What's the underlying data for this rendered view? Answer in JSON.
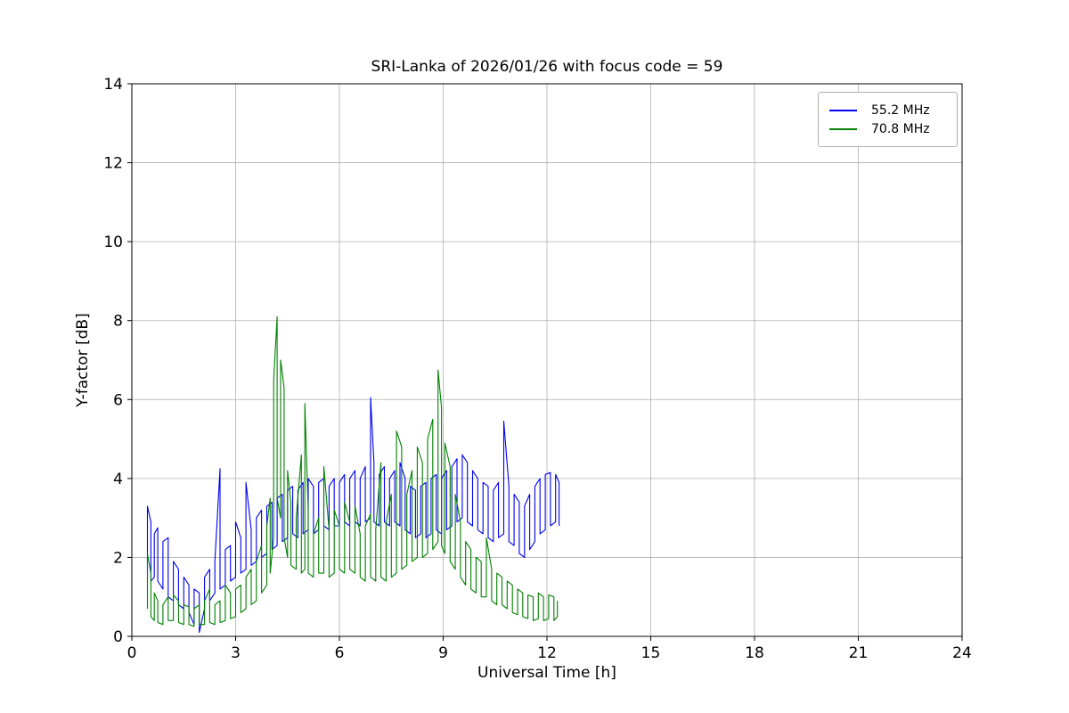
{
  "title": "SRI-Lanka of 2026/01/26 with focus code = 59",
  "chart_data": {
    "type": "line",
    "title": "SRI-Lanka of 2026/01/26 with focus code = 59",
    "xlabel": "Universal Time [h]",
    "ylabel": "Y-factor [dB]",
    "xlim": [
      0,
      24
    ],
    "ylim": [
      0,
      14
    ],
    "x_ticks": [
      0,
      3,
      6,
      9,
      12,
      15,
      18,
      21,
      24
    ],
    "y_ticks": [
      0,
      2,
      4,
      6,
      8,
      10,
      12,
      14
    ],
    "grid": true,
    "grid_color": "#b0b0b0",
    "legend_position": "upper right",
    "series": [
      {
        "name": "55.2 MHz",
        "color": "#0000ee",
        "points_format": "[x_hours, min_dB, max_dB]",
        "points": [
          [
            0.45,
            1.5,
            3.3
          ],
          [
            0.55,
            1.4,
            2.9
          ],
          [
            0.65,
            1.5,
            2.6
          ],
          [
            0.75,
            1.4,
            2.75
          ],
          [
            0.9,
            1.2,
            2.4
          ],
          [
            1.05,
            1.0,
            2.5
          ],
          [
            1.2,
            0.9,
            1.9
          ],
          [
            1.35,
            0.8,
            1.7
          ],
          [
            1.5,
            0.7,
            1.5
          ],
          [
            1.65,
            0.6,
            1.3
          ],
          [
            1.8,
            0.3,
            1.2
          ],
          [
            1.95,
            0.1,
            1.1
          ],
          [
            2.1,
            0.7,
            1.5
          ],
          [
            2.25,
            0.9,
            1.7
          ],
          [
            2.4,
            1.1,
            1.9
          ],
          [
            2.55,
            1.2,
            4.25
          ],
          [
            2.7,
            1.3,
            2.2
          ],
          [
            2.85,
            1.4,
            2.3
          ],
          [
            3.0,
            1.5,
            2.9
          ],
          [
            3.15,
            1.6,
            2.5
          ],
          [
            3.3,
            1.7,
            3.9
          ],
          [
            3.45,
            1.8,
            2.7
          ],
          [
            3.6,
            1.9,
            3.0
          ],
          [
            3.75,
            2.0,
            3.2
          ],
          [
            3.9,
            2.1,
            3.3
          ],
          [
            4.05,
            2.2,
            3.4
          ],
          [
            4.2,
            2.3,
            3.5
          ],
          [
            4.35,
            2.4,
            3.6
          ],
          [
            4.5,
            2.5,
            3.7
          ],
          [
            4.65,
            2.6,
            3.8
          ],
          [
            4.8,
            2.5,
            3.7
          ],
          [
            4.95,
            2.6,
            3.9
          ],
          [
            5.1,
            2.7,
            4.0
          ],
          [
            5.25,
            2.6,
            3.8
          ],
          [
            5.4,
            2.7,
            3.9
          ],
          [
            5.55,
            2.8,
            4.0
          ],
          [
            5.7,
            2.7,
            3.8
          ],
          [
            5.85,
            2.8,
            4.0
          ],
          [
            6.0,
            2.8,
            3.9
          ],
          [
            6.15,
            2.9,
            4.1
          ],
          [
            6.3,
            2.8,
            4.0
          ],
          [
            6.45,
            2.9,
            4.2
          ],
          [
            6.6,
            2.8,
            4.0
          ],
          [
            6.75,
            2.9,
            4.3
          ],
          [
            6.9,
            3.0,
            6.05
          ],
          [
            7.0,
            2.9,
            4.4
          ],
          [
            7.15,
            2.8,
            4.1
          ],
          [
            7.3,
            2.9,
            4.3
          ],
          [
            7.45,
            2.8,
            4.0
          ],
          [
            7.6,
            2.9,
            4.2
          ],
          [
            7.75,
            2.8,
            4.4
          ],
          [
            7.9,
            2.7,
            4.0
          ],
          [
            8.05,
            2.6,
            3.8
          ],
          [
            8.2,
            2.5,
            3.7
          ],
          [
            8.35,
            2.6,
            3.8
          ],
          [
            8.5,
            2.5,
            3.9
          ],
          [
            8.65,
            2.6,
            4.0
          ],
          [
            8.8,
            2.7,
            4.1
          ],
          [
            8.95,
            2.6,
            4.0
          ],
          [
            9.1,
            2.7,
            4.2
          ],
          [
            9.25,
            2.8,
            4.3
          ],
          [
            9.4,
            2.9,
            4.5
          ],
          [
            9.55,
            3.0,
            4.6
          ],
          [
            9.7,
            2.9,
            4.4
          ],
          [
            9.85,
            2.8,
            4.2
          ],
          [
            10.0,
            2.7,
            4.0
          ],
          [
            10.15,
            2.6,
            3.9
          ],
          [
            10.3,
            2.5,
            3.8
          ],
          [
            10.45,
            2.4,
            3.7
          ],
          [
            10.6,
            2.5,
            3.9
          ],
          [
            10.75,
            2.6,
            5.45
          ],
          [
            10.9,
            2.4,
            3.8
          ],
          [
            11.05,
            2.3,
            3.6
          ],
          [
            11.2,
            2.1,
            3.4
          ],
          [
            11.35,
            2.0,
            3.3
          ],
          [
            11.5,
            2.2,
            3.6
          ],
          [
            11.65,
            2.4,
            3.8
          ],
          [
            11.8,
            2.6,
            4.0
          ],
          [
            11.95,
            2.7,
            4.1
          ],
          [
            12.1,
            2.8,
            4.15
          ],
          [
            12.25,
            2.9,
            4.1
          ],
          [
            12.35,
            2.8,
            3.9
          ]
        ]
      },
      {
        "name": "70.8 MHz",
        "color": "#008000",
        "points_format": "[x_hours, min_dB, max_dB]",
        "points": [
          [
            0.45,
            0.7,
            2.1
          ],
          [
            0.55,
            0.5,
            1.6
          ],
          [
            0.65,
            0.4,
            1.1
          ],
          [
            0.75,
            0.35,
            0.9
          ],
          [
            0.9,
            0.3,
            0.8
          ],
          [
            1.05,
            0.4,
            1.0
          ],
          [
            1.2,
            0.4,
            1.05
          ],
          [
            1.35,
            0.35,
            0.9
          ],
          [
            1.5,
            0.3,
            0.8
          ],
          [
            1.65,
            0.3,
            0.75
          ],
          [
            1.8,
            0.25,
            0.7
          ],
          [
            1.95,
            0.3,
            0.8
          ],
          [
            2.1,
            0.3,
            0.9
          ],
          [
            2.25,
            0.35,
            1.2
          ],
          [
            2.4,
            0.3,
            0.8
          ],
          [
            2.55,
            0.35,
            0.9
          ],
          [
            2.7,
            0.4,
            1.3
          ],
          [
            2.85,
            0.45,
            1.1
          ],
          [
            3.0,
            0.5,
            1.2
          ],
          [
            3.15,
            0.6,
            1.3
          ],
          [
            3.3,
            0.7,
            1.5
          ],
          [
            3.45,
            0.8,
            1.7
          ],
          [
            3.6,
            0.9,
            1.9
          ],
          [
            3.75,
            1.1,
            2.3
          ],
          [
            3.9,
            1.3,
            2.8
          ],
          [
            4.0,
            1.6,
            3.5
          ],
          [
            4.1,
            2.5,
            6.5
          ],
          [
            4.2,
            3.5,
            8.1
          ],
          [
            4.3,
            3.0,
            7.0
          ],
          [
            4.4,
            2.5,
            6.3
          ],
          [
            4.5,
            2.0,
            4.2
          ],
          [
            4.6,
            1.8,
            3.4
          ],
          [
            4.75,
            1.7,
            3.0
          ],
          [
            4.9,
            1.6,
            4.6
          ],
          [
            5.0,
            1.7,
            5.9
          ],
          [
            5.1,
            1.6,
            3.2
          ],
          [
            5.25,
            1.5,
            2.6
          ],
          [
            5.4,
            1.6,
            3.0
          ],
          [
            5.55,
            1.6,
            4.3
          ],
          [
            5.7,
            1.5,
            2.7
          ],
          [
            5.85,
            1.6,
            3.2
          ],
          [
            6.0,
            1.7,
            2.8
          ],
          [
            6.15,
            1.6,
            3.4
          ],
          [
            6.3,
            1.7,
            2.9
          ],
          [
            6.45,
            1.6,
            3.3
          ],
          [
            6.6,
            1.5,
            2.6
          ],
          [
            6.75,
            1.4,
            2.8
          ],
          [
            6.9,
            1.5,
            3.1
          ],
          [
            7.05,
            1.4,
            2.7
          ],
          [
            7.2,
            1.5,
            4.4
          ],
          [
            7.35,
            1.4,
            2.9
          ],
          [
            7.5,
            1.5,
            3.6
          ],
          [
            7.65,
            1.6,
            5.2
          ],
          [
            7.8,
            1.7,
            4.8
          ],
          [
            7.95,
            1.8,
            3.6
          ],
          [
            8.1,
            1.9,
            4.2
          ],
          [
            8.25,
            2.0,
            4.8
          ],
          [
            8.4,
            2.0,
            4.4
          ],
          [
            8.55,
            2.1,
            5.0
          ],
          [
            8.7,
            2.2,
            5.5
          ],
          [
            8.85,
            2.4,
            6.75
          ],
          [
            8.95,
            2.3,
            5.8
          ],
          [
            9.05,
            2.1,
            4.9
          ],
          [
            9.2,
            1.9,
            4.3
          ],
          [
            9.35,
            1.7,
            3.6
          ],
          [
            9.5,
            1.5,
            2.9
          ],
          [
            9.65,
            1.3,
            2.4
          ],
          [
            9.8,
            1.2,
            2.2
          ],
          [
            9.95,
            1.1,
            2.0
          ],
          [
            10.1,
            1.0,
            1.9
          ],
          [
            10.25,
            1.0,
            2.5
          ],
          [
            10.4,
            0.9,
            1.7
          ],
          [
            10.55,
            0.8,
            1.6
          ],
          [
            10.7,
            0.8,
            1.5
          ],
          [
            10.85,
            0.7,
            1.4
          ],
          [
            11.0,
            0.6,
            1.3
          ],
          [
            11.15,
            0.55,
            1.2
          ],
          [
            11.3,
            0.5,
            1.1
          ],
          [
            11.45,
            0.45,
            1.05
          ],
          [
            11.6,
            0.4,
            1.0
          ],
          [
            11.75,
            0.45,
            1.1
          ],
          [
            11.9,
            0.4,
            1.0
          ],
          [
            12.05,
            0.45,
            1.05
          ],
          [
            12.2,
            0.4,
            1.0
          ],
          [
            12.3,
            0.5,
            0.9
          ]
        ]
      }
    ]
  }
}
